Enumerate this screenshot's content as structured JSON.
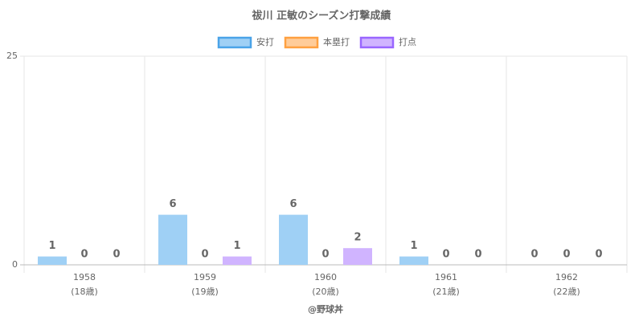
{
  "chart_data": {
    "type": "bar",
    "title": "祓川 正敏のシーズン打撃成績",
    "categories": [
      [
        "1958",
        "(18歳)"
      ],
      [
        "1959",
        "(19歳)"
      ],
      [
        "1960",
        "(20歳)"
      ],
      [
        "1961",
        "(21歳)"
      ],
      [
        "1962",
        "(22歳)"
      ]
    ],
    "series": [
      {
        "name": "安打",
        "color": "#9fd0f5",
        "border": "#4aa3e8",
        "values": [
          1,
          6,
          6,
          1,
          0
        ]
      },
      {
        "name": "本塁打",
        "color": "#ffcc99",
        "border": "#ffa040",
        "values": [
          0,
          0,
          0,
          0,
          0
        ]
      },
      {
        "name": "打点",
        "color": "#d0b4ff",
        "border": "#9966ff",
        "values": [
          0,
          1,
          2,
          0,
          0
        ]
      }
    ],
    "xlabel": "@野球丼",
    "ylim": [
      0,
      25
    ],
    "yticks": [
      0,
      25
    ],
    "grid": true,
    "legend": "top"
  }
}
